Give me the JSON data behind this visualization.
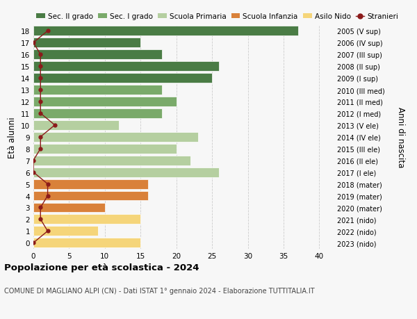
{
  "ages": [
    18,
    17,
    16,
    15,
    14,
    13,
    12,
    11,
    10,
    9,
    8,
    7,
    6,
    5,
    4,
    3,
    2,
    1,
    0
  ],
  "bar_values": [
    37,
    15,
    18,
    26,
    25,
    18,
    20,
    18,
    12,
    23,
    20,
    22,
    26,
    16,
    16,
    10,
    15,
    9,
    15
  ],
  "bar_colors": [
    "#4a7c45",
    "#4a7c45",
    "#4a7c45",
    "#4a7c45",
    "#4a7c45",
    "#7aaa6a",
    "#7aaa6a",
    "#7aaa6a",
    "#b5cfa0",
    "#b5cfa0",
    "#b5cfa0",
    "#b5cfa0",
    "#b5cfa0",
    "#d9813a",
    "#d9813a",
    "#d9813a",
    "#f5d57a",
    "#f5d57a",
    "#f5d57a"
  ],
  "stranieri_values": [
    2,
    0,
    1,
    1,
    1,
    1,
    1,
    1,
    3,
    1,
    1,
    0,
    0,
    2,
    2,
    1,
    1,
    2,
    0
  ],
  "right_labels": [
    "2005 (V sup)",
    "2006 (IV sup)",
    "2007 (III sup)",
    "2008 (II sup)",
    "2009 (I sup)",
    "2010 (III med)",
    "2011 (II med)",
    "2012 (I med)",
    "2013 (V ele)",
    "2014 (IV ele)",
    "2015 (III ele)",
    "2016 (II ele)",
    "2017 (I ele)",
    "2018 (mater)",
    "2019 (mater)",
    "2020 (mater)",
    "2021 (nido)",
    "2022 (nido)",
    "2023 (nido)"
  ],
  "legend_labels": [
    "Sec. II grado",
    "Sec. I grado",
    "Scuola Primaria",
    "Scuola Infanzia",
    "Asilo Nido",
    "Stranieri"
  ],
  "legend_colors": [
    "#4a7c45",
    "#7aaa6a",
    "#b5cfa0",
    "#d9813a",
    "#f5d57a",
    "#8b1a1a"
  ],
  "ylabel_left": "Età alunni",
  "ylabel_right": "Anni di nascita",
  "title": "Popolazione per età scolastica - 2024",
  "subtitle": "COMUNE DI MAGLIANO ALPI (CN) - Dati ISTAT 1° gennaio 2024 - Elaborazione TUTTITALIA.IT",
  "xlim": [
    0,
    42
  ],
  "bg_color": "#f7f7f7",
  "grid_color": "#cccccc"
}
